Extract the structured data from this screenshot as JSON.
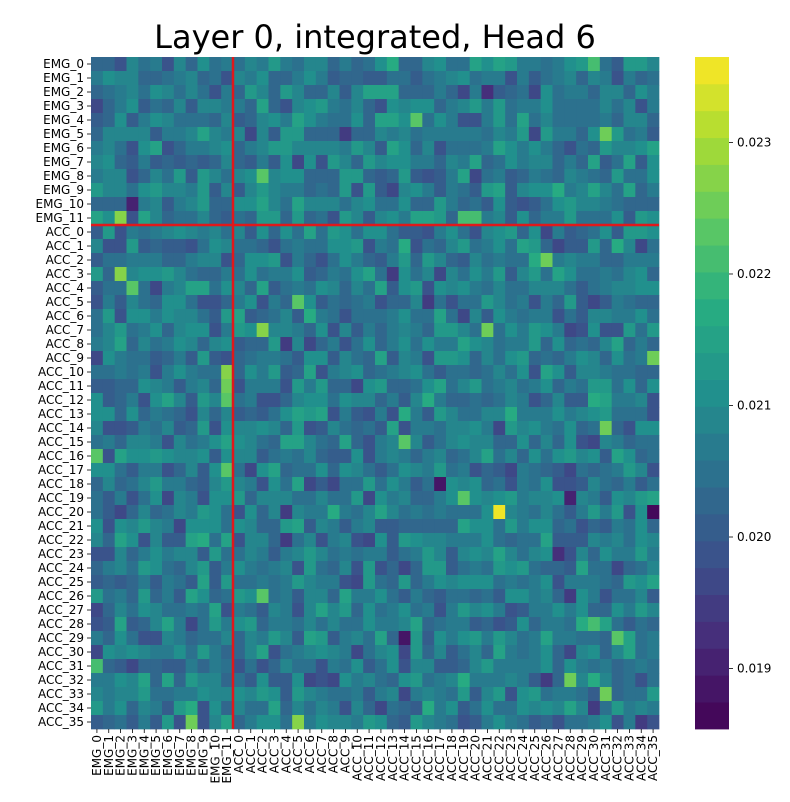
{
  "chart_data": {
    "type": "heatmap",
    "title": "Layer 0, integrated, Head 6",
    "xlabel": "",
    "ylabel": "",
    "rows": [
      "EMG_0",
      "EMG_1",
      "EMG_2",
      "EMG_3",
      "EMG_4",
      "EMG_5",
      "EMG_6",
      "EMG_7",
      "EMG_8",
      "EMG_9",
      "EMG_10",
      "EMG_11",
      "ACC_0",
      "ACC_1",
      "ACC_2",
      "ACC_3",
      "ACC_4",
      "ACC_5",
      "ACC_6",
      "ACC_7",
      "ACC_8",
      "ACC_9",
      "ACC_10",
      "ACC_11",
      "ACC_12",
      "ACC_13",
      "ACC_14",
      "ACC_15",
      "ACC_16",
      "ACC_17",
      "ACC_18",
      "ACC_19",
      "ACC_20",
      "ACC_21",
      "ACC_22",
      "ACC_23",
      "ACC_24",
      "ACC_25",
      "ACC_26",
      "ACC_27",
      "ACC_28",
      "ACC_29",
      "ACC_30",
      "ACC_31",
      "ACC_32",
      "ACC_33",
      "ACC_34",
      "ACC_35"
    ],
    "columns": [
      "EMG_0",
      "EMG_1",
      "EMG_2",
      "EMG_3",
      "EMG_4",
      "EMG_5",
      "EMG_6",
      "EMG_7",
      "EMG_8",
      "EMG_9",
      "EMG_10",
      "EMG_11",
      "ACC_0",
      "ACC_1",
      "ACC_2",
      "ACC_3",
      "ACC_4",
      "ACC_5",
      "ACC_6",
      "ACC_7",
      "ACC_8",
      "ACC_9",
      "ACC_10",
      "ACC_11",
      "ACC_12",
      "ACC_13",
      "ACC_14",
      "ACC_15",
      "ACC_16",
      "ACC_17",
      "ACC_18",
      "ACC_19",
      "ACC_20",
      "ACC_21",
      "ACC_22",
      "ACC_23",
      "ACC_24",
      "ACC_25",
      "ACC_26",
      "ACC_27",
      "ACC_28",
      "ACC_29",
      "ACC_30",
      "ACC_31",
      "ACC_32",
      "ACC_33",
      "ACC_34",
      "ACC_35"
    ],
    "colorbar": {
      "colormap": "viridis",
      "range": [
        0.01854,
        0.02365
      ],
      "ticks": [
        0.019,
        0.02,
        0.021,
        0.022,
        0.023
      ],
      "tick_labels": [
        "0.019",
        "0.020",
        "0.021",
        "0.022",
        "0.023"
      ]
    },
    "baseline_value": 0.02065,
    "highlights": [
      {
        "row": "EMG_11",
        "col": "EMG_2",
        "value": 0.0228
      },
      {
        "row": "EMG_10",
        "col": "EMG_3",
        "value": 0.0191
      },
      {
        "row": "ACC_3",
        "col": "EMG_2",
        "value": 0.0227
      },
      {
        "row": "ACC_7",
        "col": "ACC_2",
        "value": 0.0227
      },
      {
        "row": "ACC_7",
        "col": "ACC_21",
        "value": 0.0226
      },
      {
        "row": "ACC_9",
        "col": "ACC_35",
        "value": 0.0226
      },
      {
        "row": "ACC_10",
        "col": "EMG_11",
        "value": 0.0227
      },
      {
        "row": "ACC_11",
        "col": "EMG_11",
        "value": 0.0226
      },
      {
        "row": "ACC_12",
        "col": "EMG_11",
        "value": 0.0224
      },
      {
        "row": "ACC_17",
        "col": "EMG_11",
        "value": 0.0224
      },
      {
        "row": "ACC_20",
        "col": "ACC_22",
        "value": 0.0235
      },
      {
        "row": "ACC_20",
        "col": "ACC_35",
        "value": 0.0187
      },
      {
        "row": "ACC_29",
        "col": "ACC_14",
        "value": 0.0188
      },
      {
        "row": "ACC_19",
        "col": "ACC_28",
        "value": 0.019
      },
      {
        "row": "ACC_18",
        "col": "ACC_17",
        "value": 0.0189
      },
      {
        "row": "ACC_35",
        "col": "ACC_5",
        "value": 0.0227
      },
      {
        "row": "ACC_35",
        "col": "EMG_8",
        "value": 0.0225
      },
      {
        "row": "ACC_32",
        "col": "ACC_28",
        "value": 0.0226
      },
      {
        "row": "ACC_2",
        "col": "ACC_26",
        "value": 0.0225
      },
      {
        "row": "EMG_5",
        "col": "ACC_31",
        "value": 0.0226
      },
      {
        "row": "ACC_33",
        "col": "ACC_31",
        "value": 0.0225
      },
      {
        "row": "ACC_14",
        "col": "ACC_31",
        "value": 0.0225
      },
      {
        "row": "ACC_15",
        "col": "ACC_14",
        "value": 0.0224
      },
      {
        "row": "ACC_16",
        "col": "EMG_0",
        "value": 0.0223
      },
      {
        "row": "ACC_5",
        "col": "ACC_5",
        "value": 0.0223
      },
      {
        "row": "EMG_4",
        "col": "ACC_15",
        "value": 0.0223
      },
      {
        "row": "EMG_8",
        "col": "ACC_2",
        "value": 0.0223
      },
      {
        "row": "ACC_4",
        "col": "EMG_3",
        "value": 0.0223
      },
      {
        "row": "EMG_11",
        "col": "ACC_19",
        "value": 0.0222
      },
      {
        "row": "EMG_11",
        "col": "ACC_20",
        "value": 0.0222
      },
      {
        "row": "ACC_19",
        "col": "ACC_19",
        "value": 0.0223
      },
      {
        "row": "ACC_26",
        "col": "ACC_2",
        "value": 0.0223
      },
      {
        "row": "ACC_28",
        "col": "ACC_30",
        "value": 0.0222
      },
      {
        "row": "ACC_29",
        "col": "ACC_32",
        "value": 0.0223
      },
      {
        "row": "ACC_31",
        "col": "EMG_0",
        "value": 0.0222
      },
      {
        "row": "EMG_0",
        "col": "ACC_30",
        "value": 0.0222
      },
      {
        "row": "EMG_2",
        "col": "ACC_21",
        "value": 0.0193
      },
      {
        "row": "ACC_5",
        "col": "ACC_16",
        "value": 0.0194
      },
      {
        "row": "ACC_8",
        "col": "ACC_4",
        "value": 0.0195
      },
      {
        "row": "ACC_20",
        "col": "ACC_4",
        "value": 0.0195
      },
      {
        "row": "ACC_22",
        "col": "ACC_4",
        "value": 0.0195
      },
      {
        "row": "ACC_23",
        "col": "ACC_27",
        "value": 0.0192
      },
      {
        "row": "ACC_26",
        "col": "ACC_28",
        "value": 0.0195
      },
      {
        "row": "ACC_34",
        "col": "ACC_30",
        "value": 0.0194
      },
      {
        "row": "EMG_5",
        "col": "ACC_9",
        "value": 0.0194
      },
      {
        "row": "ACC_3",
        "col": "ACC_13",
        "value": 0.0195
      },
      {
        "row": "ACC_32",
        "col": "ACC_26",
        "value": 0.0195
      },
      {
        "row": "ACC_35",
        "col": "ACC_34",
        "value": 0.0194
      }
    ],
    "separators": {
      "row_after": "EMG_11",
      "col_after": "EMG_11",
      "color": "#e0181b"
    }
  }
}
